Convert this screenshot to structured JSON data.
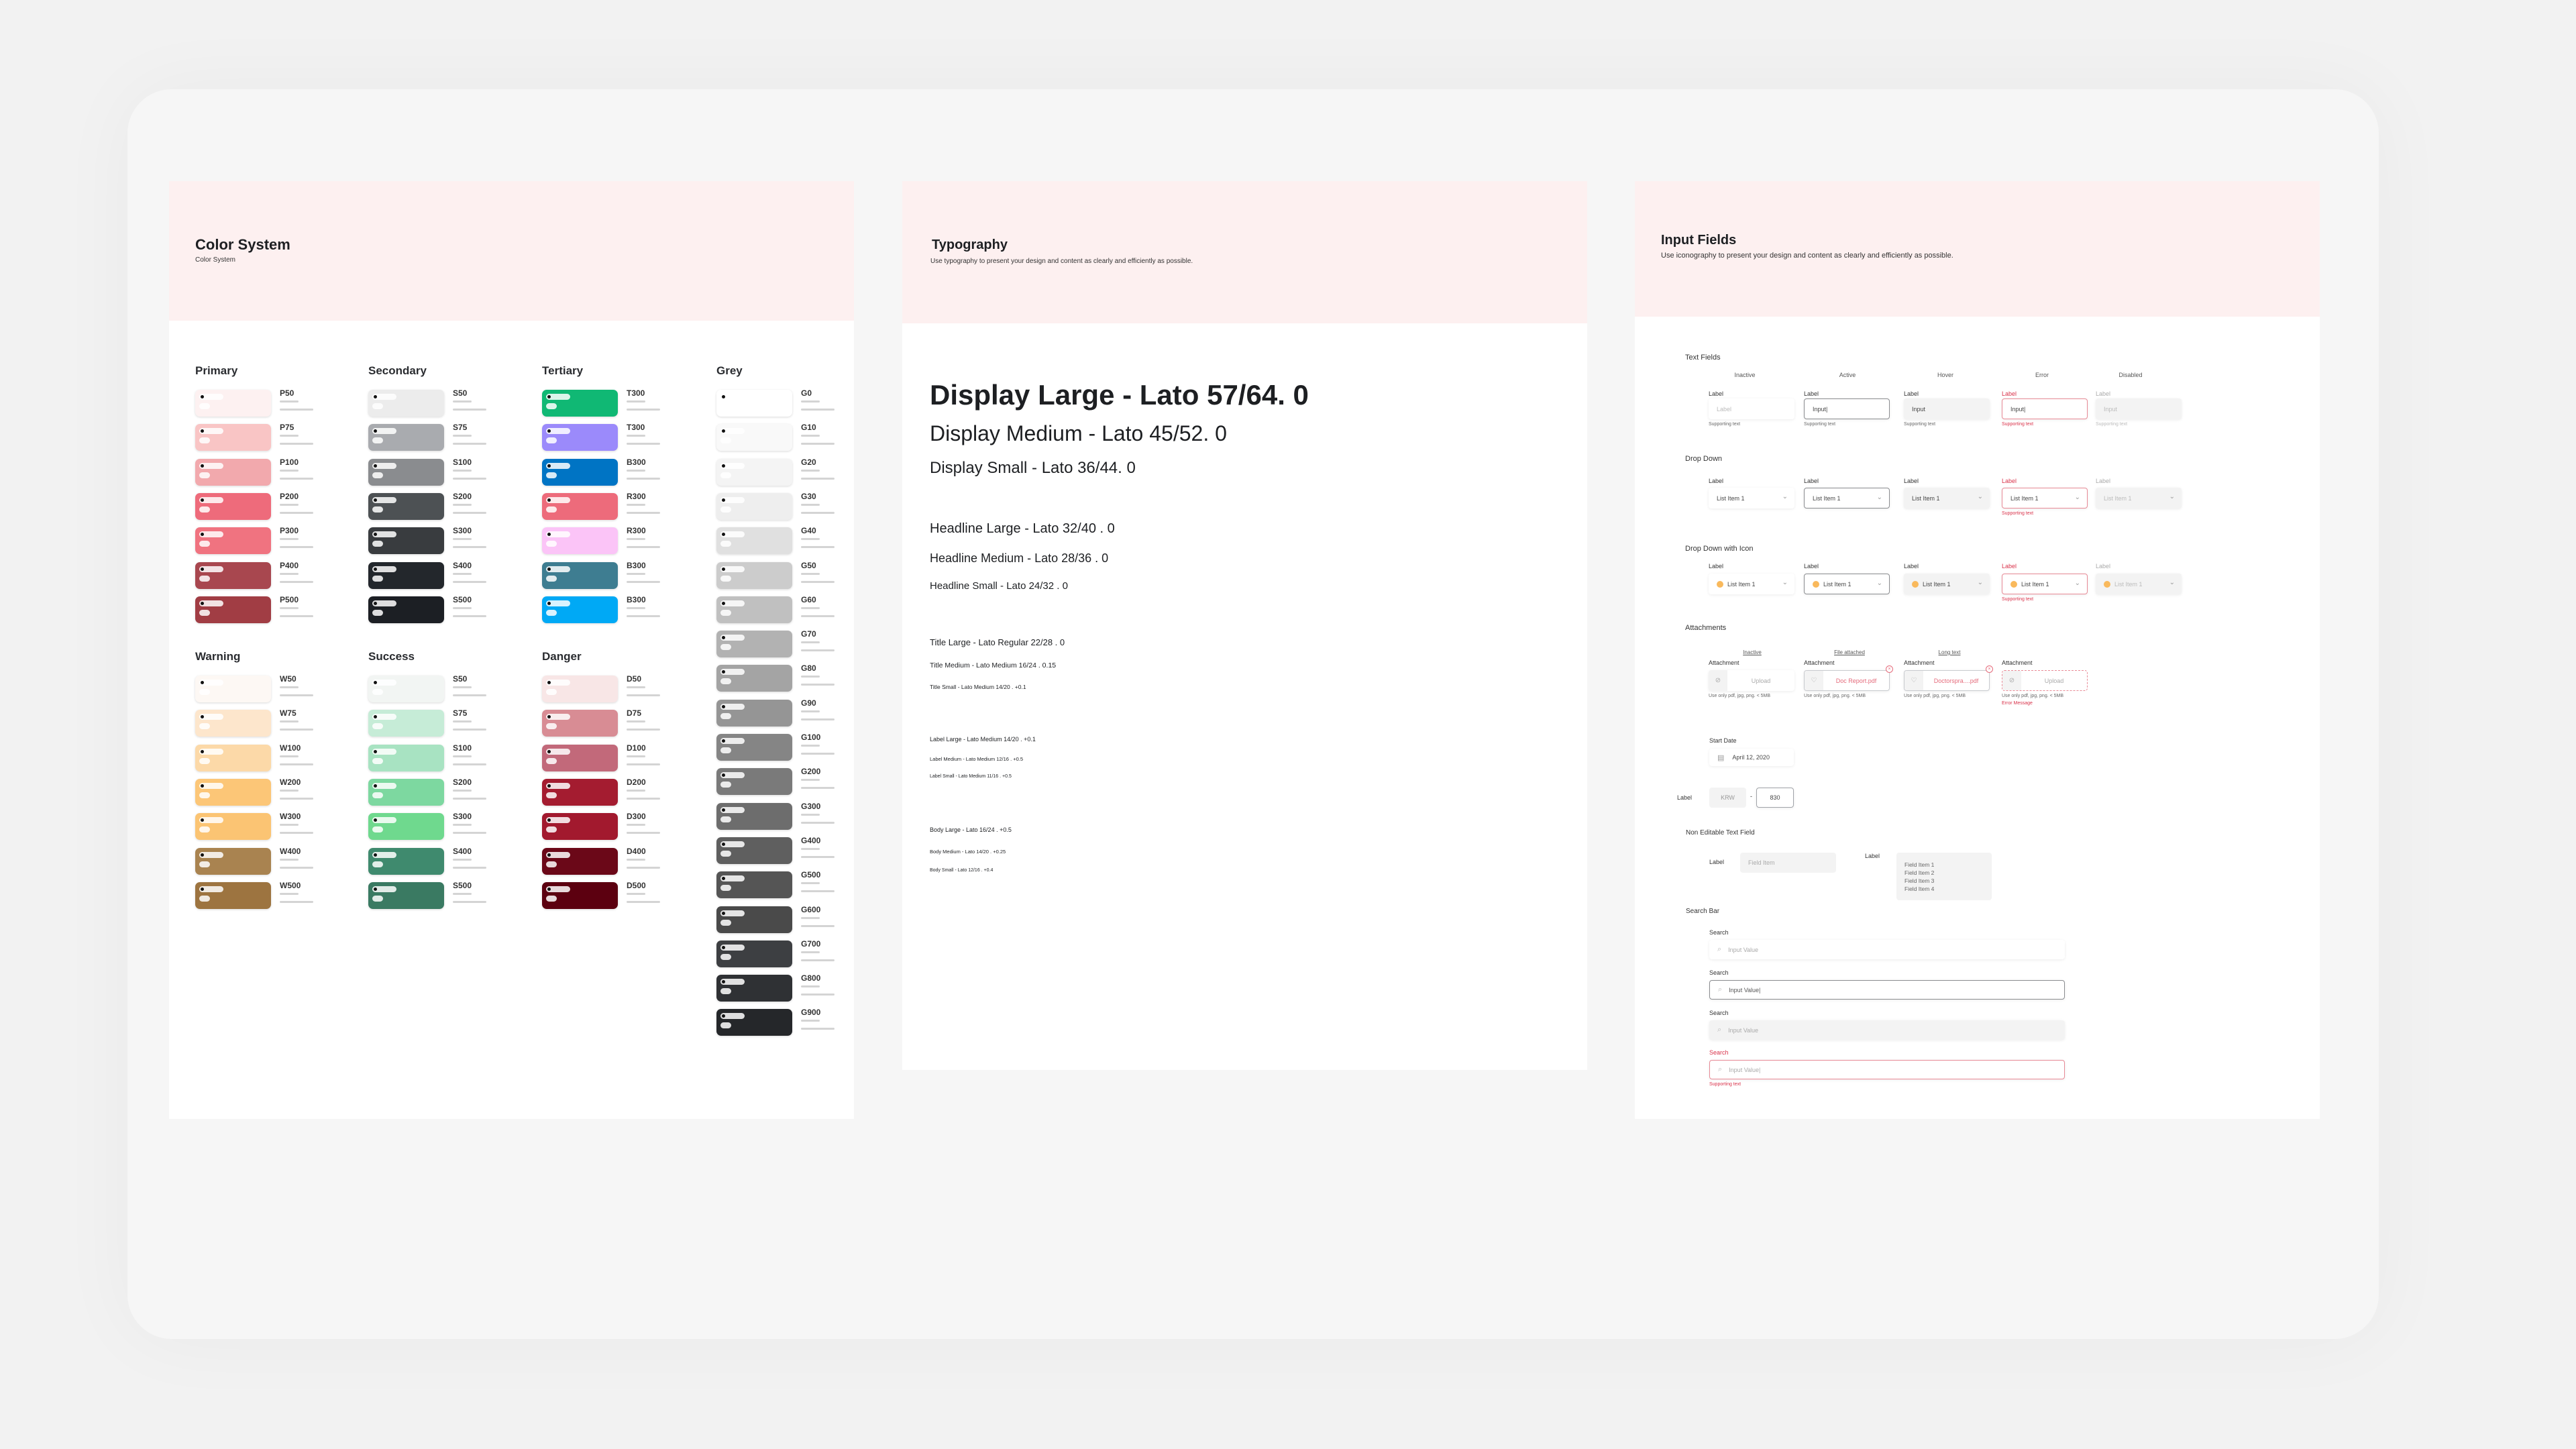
{
  "colors": {
    "page_bg": "#f2f2f2",
    "header_bg": "#fdf0f0",
    "error": "#d9324a",
    "icon_dot": "#f9b95c"
  },
  "color_system": {
    "title": "Color System",
    "subtitle": "Color System",
    "groups": [
      {
        "name": "Primary",
        "swatches": [
          {
            "name": "P50",
            "color": "#fdf1f1"
          },
          {
            "name": "P75",
            "color": "#f9c5c5"
          },
          {
            "name": "P100",
            "color": "#f2a9ad"
          },
          {
            "name": "P200",
            "color": "#ee6b7b"
          },
          {
            "name": "P300",
            "color": "#f07380"
          },
          {
            "name": "P400",
            "color": "#a8474f"
          },
          {
            "name": "P500",
            "color": "#a13d44"
          }
        ]
      },
      {
        "name": "Secondary",
        "swatches": [
          {
            "name": "S50",
            "color": "#ececec"
          },
          {
            "name": "S75",
            "color": "#a9abaf"
          },
          {
            "name": "S100",
            "color": "#8a8c8f"
          },
          {
            "name": "S200",
            "color": "#4d5154"
          },
          {
            "name": "S300",
            "color": "#393c3f"
          },
          {
            "name": "S400",
            "color": "#23272c"
          },
          {
            "name": "S500",
            "color": "#1c1f24"
          }
        ]
      },
      {
        "name": "Tertiary",
        "swatches": [
          {
            "name": "T300",
            "color": "#10b874"
          },
          {
            "name": "T300",
            "color": "#9b8afb"
          },
          {
            "name": "B300",
            "color": "#0074c4"
          },
          {
            "name": "R300",
            "color": "#ed6b7b"
          },
          {
            "name": "R300",
            "color": "#fbc4f7"
          },
          {
            "name": "B300",
            "color": "#3e7d91"
          },
          {
            "name": "B300",
            "color": "#00a9f5"
          }
        ]
      },
      {
        "name": "Grey",
        "swatches": [
          {
            "name": "G0",
            "color": "#ffffff"
          },
          {
            "name": "G10",
            "color": "#f9f9f9"
          },
          {
            "name": "G20",
            "color": "#f4f4f4"
          },
          {
            "name": "G30",
            "color": "#eeeeee"
          },
          {
            "name": "G40",
            "color": "#e0e0e0"
          },
          {
            "name": "G50",
            "color": "#cccccc"
          },
          {
            "name": "G60",
            "color": "#c0c0c0"
          },
          {
            "name": "G70",
            "color": "#b2b2b2"
          },
          {
            "name": "G80",
            "color": "#a4a4a4"
          },
          {
            "name": "G90",
            "color": "#959595"
          },
          {
            "name": "G100",
            "color": "#858585"
          },
          {
            "name": "G200",
            "color": "#7a7a7a"
          },
          {
            "name": "G300",
            "color": "#6d6d6d"
          },
          {
            "name": "G400",
            "color": "#5f5f5f"
          },
          {
            "name": "G500",
            "color": "#555555"
          },
          {
            "name": "G600",
            "color": "#4a4a4a"
          },
          {
            "name": "G700",
            "color": "#3d3f42"
          },
          {
            "name": "G800",
            "color": "#2f3134"
          },
          {
            "name": "G900",
            "color": "#25272a"
          }
        ]
      },
      {
        "name": "Warning",
        "swatches": [
          {
            "name": "W50",
            "color": "#fdf8f4"
          },
          {
            "name": "W75",
            "color": "#fde6cc"
          },
          {
            "name": "W100",
            "color": "#fcd9a8"
          },
          {
            "name": "W200",
            "color": "#fcc677"
          },
          {
            "name": "W300",
            "color": "#fbc473"
          },
          {
            "name": "W400",
            "color": "#a98350"
          },
          {
            "name": "W500",
            "color": "#9d7440"
          }
        ]
      },
      {
        "name": "Success",
        "swatches": [
          {
            "name": "S50",
            "color": "#f2f5f3"
          },
          {
            "name": "S75",
            "color": "#c6ecd7"
          },
          {
            "name": "S100",
            "color": "#a8e3c2"
          },
          {
            "name": "S200",
            "color": "#7dd8a0"
          },
          {
            "name": "S300",
            "color": "#6fd98e"
          },
          {
            "name": "S400",
            "color": "#3f8a6e"
          },
          {
            "name": "S500",
            "color": "#3a7a62"
          }
        ]
      },
      {
        "name": "Danger",
        "swatches": [
          {
            "name": "D50",
            "color": "#f8e6e6"
          },
          {
            "name": "D75",
            "color": "#d88c94"
          },
          {
            "name": "D100",
            "color": "#c2697a"
          },
          {
            "name": "D200",
            "color": "#a41c30"
          },
          {
            "name": "D300",
            "color": "#a2192e"
          },
          {
            "name": "D400",
            "color": "#6b0818"
          },
          {
            "name": "D500",
            "color": "#5c0010"
          }
        ]
      }
    ]
  },
  "typography": {
    "title": "Typography",
    "subtitle": "Use typography to present your design and content as clearly and efficiently as possible.",
    "styles": [
      "Display Large - Lato 57/64. 0",
      "Display Medium - Lato 45/52. 0",
      "Display Small - Lato 36/44. 0",
      "Headline Large - Lato 32/40 . 0",
      "Headline Medium - Lato 28/36 . 0",
      "Headline Small - Lato 24/32 . 0",
      "Title Large - Lato Regular 22/28 . 0",
      "Title Medium - Lato Medium 16/24 . 0.15",
      "Title Small - Lato Medium 14/20 . +0.1",
      "Label Large - Lato Medium 14/20 . +0.1",
      "Label Medium - Lato Medium 12/16 . +0.5",
      "Label Small - Lato Medium 11/16 . +0.5",
      "Body Large - Lato 16/24 . +0.5",
      "Body Medium - Lato 14/20 . +0.25",
      "Body Small - Lato 12/16 . +0.4"
    ]
  },
  "input_fields": {
    "title": "Input Fields",
    "subtitle": "Use iconography to present your design and content as clearly and efficiently as possible.",
    "states": [
      "Inactive",
      "Active",
      "Hover",
      "Error",
      "Disabled"
    ],
    "text_fields": {
      "title": "Text Fields",
      "fields": [
        {
          "label": "Label",
          "value": "Label",
          "supporting": "Supporting text"
        },
        {
          "label": "Label",
          "value": "Input|",
          "supporting": "Supporting text"
        },
        {
          "label": "Label",
          "value": "Input",
          "supporting": "Supporting text"
        },
        {
          "label": "Label",
          "value": "Input|",
          "supporting": "Supporting text"
        },
        {
          "label": "Label",
          "value": "Input",
          "supporting": "Supporting text"
        }
      ]
    },
    "drop_down": {
      "title": "Drop Down",
      "fields": [
        {
          "label": "Label",
          "value": "List Item 1"
        },
        {
          "label": "Label",
          "value": "List Item 1"
        },
        {
          "label": "Label",
          "value": "List Item 1"
        },
        {
          "label": "Label",
          "value": "List Item 1",
          "supporting": "Supporting text"
        },
        {
          "label": "Label",
          "value": "List Item 1"
        }
      ]
    },
    "drop_down_icon": {
      "title": "Drop Down with Icon",
      "fields": [
        {
          "label": "Label",
          "value": "List Item 1"
        },
        {
          "label": "Label",
          "value": "List Item 1"
        },
        {
          "label": "Label",
          "value": "List Item 1"
        },
        {
          "label": "Label",
          "value": "List Item 1",
          "supporting": "Supporting text"
        },
        {
          "label": "Label",
          "value": "List Item 1"
        }
      ]
    },
    "attachments": {
      "title": "Attachments",
      "states": [
        "Inactive",
        "File attached",
        "Long text"
      ],
      "fields": [
        {
          "label": "Attachment",
          "value": "Upload",
          "helper": "Use only pdf, jpg, png. < 5MB"
        },
        {
          "label": "Attachment",
          "value": "Doc Report.pdf",
          "helper": "Use only pdf, jpg, png. < 5MB"
        },
        {
          "label": "Attachment",
          "value": "Doctorspra....pdf",
          "helper": "Use only pdf, jpg, png. < 5MB"
        },
        {
          "label": "Attachment",
          "value": "Upload",
          "helper": "Use only pdf, jpg, png. < 5MB",
          "error": "Error Message"
        }
      ]
    },
    "start_date": {
      "label": "Start Date",
      "value": "April 12, 2020"
    },
    "currency": {
      "label": "Label",
      "currency": "KRW",
      "separator": "-",
      "amount": "830"
    },
    "non_editable": {
      "title": "Non Editable Text Field",
      "single": {
        "label": "Label",
        "value": "Field Item"
      },
      "multi": {
        "label": "Label",
        "items": [
          "Field Item 1",
          "Field Item 2",
          "Field Item 3",
          "Field Item 4"
        ]
      }
    },
    "search_bar": {
      "title": "Search Bar",
      "bars": [
        {
          "label": "Search",
          "value": "Input Value"
        },
        {
          "label": "Search",
          "value": "Input Value|"
        },
        {
          "label": "Search",
          "value": "Input Value"
        },
        {
          "label": "Search",
          "value": "Input Value|",
          "supporting": "Supporting text"
        }
      ]
    }
  }
}
